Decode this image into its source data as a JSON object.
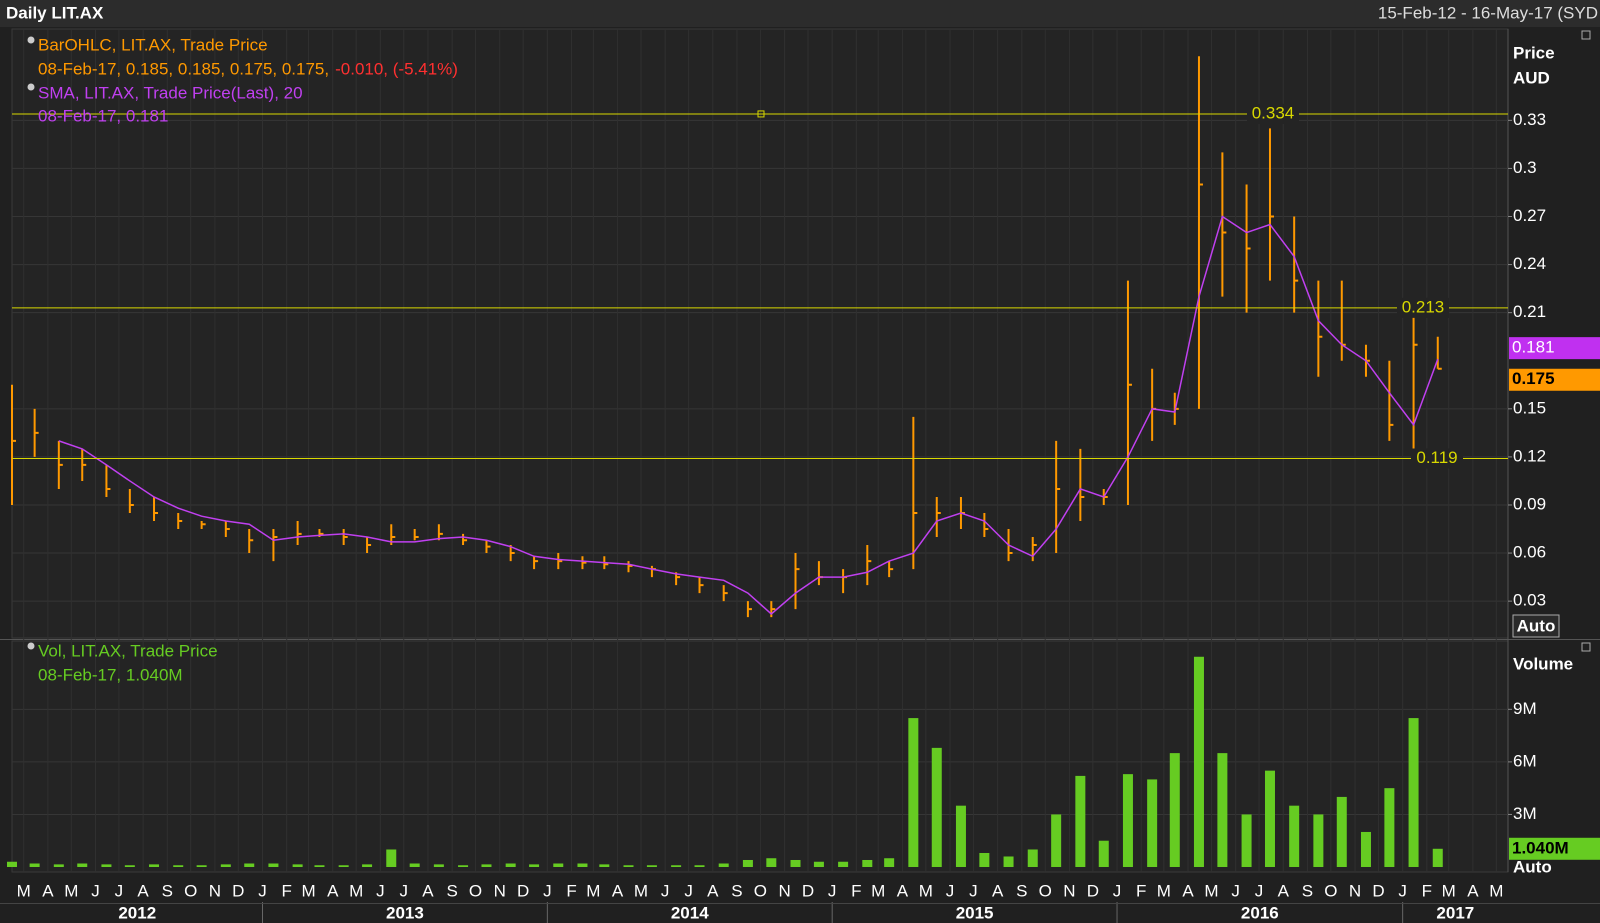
{
  "chart_data": [
    {
      "type": "ohlc",
      "title": "Daily LIT.AX",
      "date_range": "15-Feb-12 - 16-May-17 (SYD",
      "y_axis_title": [
        "Price",
        "AUD"
      ],
      "scale_button": "Auto",
      "legend_detail": [
        "08-Feb-17, 0.185, 0.185, 0.175, 0.175,",
        "-0.010, (-5.41%)",
        "08-Feb-17, 0.181"
      ],
      "xlim": [
        "2012-02-15",
        "2017-05-16"
      ],
      "x": [
        "2012-02",
        "2012-03",
        "2012-04",
        "2012-05",
        "2012-06",
        "2012-07",
        "2012-08",
        "2012-09",
        "2012-10",
        "2012-11",
        "2012-12",
        "2013-01",
        "2013-02",
        "2013-03",
        "2013-04",
        "2013-05",
        "2013-06",
        "2013-07",
        "2013-08",
        "2013-09",
        "2013-10",
        "2013-11",
        "2013-12",
        "2014-01",
        "2014-02",
        "2014-03",
        "2014-04",
        "2014-05",
        "2014-06",
        "2014-07",
        "2014-08",
        "2014-09",
        "2014-10",
        "2014-11",
        "2014-12",
        "2015-01",
        "2015-02",
        "2015-03",
        "2015-04",
        "2015-05",
        "2015-06",
        "2015-07",
        "2015-08",
        "2015-09",
        "2015-10",
        "2015-11",
        "2015-12",
        "2016-01",
        "2016-02",
        "2016-03",
        "2016-04",
        "2016-05",
        "2016-06",
        "2016-07",
        "2016-08",
        "2016-09",
        "2016-10",
        "2016-11",
        "2016-12",
        "2017-01",
        "2017-02"
      ],
      "series": [
        {
          "name": "BarOHLC, LIT.AX, Trade Price",
          "color": "#ff9900",
          "high": [
            0.165,
            0.15,
            0.13,
            0.125,
            0.115,
            0.1,
            0.095,
            0.085,
            0.08,
            0.08,
            0.075,
            0.075,
            0.08,
            0.075,
            0.075,
            0.07,
            0.078,
            0.075,
            0.078,
            0.072,
            0.068,
            0.065,
            0.058,
            0.06,
            0.058,
            0.058,
            0.055,
            0.052,
            0.048,
            0.045,
            0.04,
            0.03,
            0.03,
            0.06,
            0.055,
            0.05,
            0.065,
            0.055,
            0.145,
            0.095,
            0.095,
            0.085,
            0.075,
            0.07,
            0.13,
            0.125,
            0.1,
            0.23,
            0.175,
            0.16,
            0.37,
            0.31,
            0.29,
            0.325,
            0.27,
            0.23,
            0.23,
            0.19,
            0.18,
            0.21,
            0.195
          ],
          "low": [
            0.09,
            0.12,
            0.1,
            0.105,
            0.095,
            0.085,
            0.08,
            0.075,
            0.075,
            0.07,
            0.06,
            0.055,
            0.065,
            0.07,
            0.065,
            0.06,
            0.065,
            0.068,
            0.068,
            0.065,
            0.06,
            0.055,
            0.05,
            0.05,
            0.05,
            0.05,
            0.048,
            0.045,
            0.04,
            0.035,
            0.03,
            0.02,
            0.02,
            0.025,
            0.04,
            0.035,
            0.04,
            0.045,
            0.05,
            0.07,
            0.075,
            0.07,
            0.055,
            0.055,
            0.06,
            0.08,
            0.09,
            0.09,
            0.13,
            0.14,
            0.15,
            0.22,
            0.21,
            0.23,
            0.21,
            0.17,
            0.18,
            0.17,
            0.13,
            0.12,
            0.175
          ],
          "close": [
            0.13,
            0.135,
            0.115,
            0.115,
            0.1,
            0.09,
            0.085,
            0.08,
            0.078,
            0.075,
            0.068,
            0.07,
            0.072,
            0.072,
            0.07,
            0.065,
            0.07,
            0.07,
            0.072,
            0.068,
            0.064,
            0.06,
            0.055,
            0.055,
            0.054,
            0.053,
            0.052,
            0.05,
            0.045,
            0.04,
            0.035,
            0.025,
            0.025,
            0.05,
            0.045,
            0.045,
            0.055,
            0.05,
            0.085,
            0.085,
            0.085,
            0.075,
            0.06,
            0.065,
            0.1,
            0.095,
            0.095,
            0.165,
            0.15,
            0.15,
            0.29,
            0.26,
            0.25,
            0.27,
            0.23,
            0.195,
            0.19,
            0.18,
            0.14,
            0.19,
            0.175
          ]
        },
        {
          "name": "SMA, LIT.AX, Trade Price(Last),  20",
          "color": "#c040f0",
          "values": [
            null,
            null,
            0.13,
            0.125,
            0.115,
            0.105,
            0.095,
            0.088,
            0.083,
            0.08,
            0.078,
            0.068,
            0.07,
            0.071,
            0.072,
            0.07,
            0.067,
            0.067,
            0.069,
            0.07,
            0.068,
            0.064,
            0.058,
            0.056,
            0.055,
            0.054,
            0.053,
            0.05,
            0.047,
            0.045,
            0.043,
            0.035,
            0.022,
            0.035,
            0.045,
            0.045,
            0.048,
            0.055,
            0.06,
            0.08,
            0.085,
            0.08,
            0.065,
            0.058,
            0.075,
            0.1,
            0.095,
            0.12,
            0.15,
            0.148,
            0.22,
            0.27,
            0.26,
            0.265,
            0.245,
            0.205,
            0.19,
            0.18,
            0.16,
            0.14,
            0.181
          ]
        }
      ],
      "levels": [
        0.334,
        0.213,
        0.119
      ],
      "level_color": "#d8d800",
      "last_tags": [
        {
          "value": 0.181,
          "color": "#c030f0"
        },
        {
          "value": 0.175,
          "color": "#ff9900"
        }
      ],
      "ylim": [
        0.007,
        0.387
      ],
      "yticks": [
        0.03,
        0.06,
        0.09,
        0.12,
        0.15,
        0.21,
        0.24,
        0.27,
        0.3,
        0.33
      ],
      "grid": true
    },
    {
      "type": "bar",
      "name": "Vol, LIT.AX, Trade Price",
      "color": "#66cc22",
      "y_axis_title": "Volume",
      "scale_button": "Auto",
      "legend_detail": "08-Feb-17, 1.040M",
      "xlim": [
        "2012-02-15",
        "2017-05-16"
      ],
      "values": [
        300000,
        200000,
        150000,
        200000,
        150000,
        100000,
        150000,
        100000,
        100000,
        150000,
        200000,
        200000,
        150000,
        100000,
        100000,
        150000,
        1000000,
        200000,
        150000,
        100000,
        150000,
        200000,
        150000,
        200000,
        200000,
        150000,
        100000,
        100000,
        100000,
        100000,
        200000,
        400000,
        500000,
        400000,
        300000,
        300000,
        400000,
        500000,
        8500000,
        6800000,
        3500000,
        800000,
        600000,
        1000000,
        3000000,
        5200000,
        1500000,
        5300000,
        5000000,
        6500000,
        12000000,
        6500000,
        3000000,
        5500000,
        3500000,
        3000000,
        4000000,
        2000000,
        4500000,
        8500000,
        1040000
      ],
      "last_tag": {
        "value": 1040000,
        "label": "1.040M"
      },
      "ylim": [
        0,
        12900000
      ],
      "yticks": [
        {
          "value": 3000000,
          "label": "3M"
        },
        {
          "value": 6000000,
          "label": "6M"
        },
        {
          "value": 9000000,
          "label": "9M"
        }
      ],
      "grid": true,
      "xticks": [
        {
          "value": "2012-03",
          "label": "M"
        },
        {
          "value": "2012-04",
          "label": "A"
        },
        {
          "value": "2012-05",
          "label": "M"
        },
        {
          "value": "2012-06",
          "label": "J"
        },
        {
          "value": "2012-07",
          "label": "J"
        },
        {
          "value": "2012-08",
          "label": "A"
        },
        {
          "value": "2012-09",
          "label": "S"
        },
        {
          "value": "2012-10",
          "label": "O"
        },
        {
          "value": "2012-11",
          "label": "N"
        },
        {
          "value": "2012-12",
          "label": "D"
        },
        {
          "value": "2013-01",
          "label": "J"
        },
        {
          "value": "2013-02",
          "label": "F"
        },
        {
          "value": "2013-03",
          "label": "M"
        },
        {
          "value": "2013-04",
          "label": "A"
        },
        {
          "value": "2013-05",
          "label": "M"
        },
        {
          "value": "2013-06",
          "label": "J"
        },
        {
          "value": "2013-07",
          "label": "J"
        },
        {
          "value": "2013-08",
          "label": "A"
        },
        {
          "value": "2013-09",
          "label": "S"
        },
        {
          "value": "2013-10",
          "label": "O"
        },
        {
          "value": "2013-11",
          "label": "N"
        },
        {
          "value": "2013-12",
          "label": "D"
        },
        {
          "value": "2014-01",
          "label": "J"
        },
        {
          "value": "2014-02",
          "label": "F"
        },
        {
          "value": "2014-03",
          "label": "M"
        },
        {
          "value": "2014-04",
          "label": "A"
        },
        {
          "value": "2014-05",
          "label": "M"
        },
        {
          "value": "2014-06",
          "label": "J"
        },
        {
          "value": "2014-07",
          "label": "J"
        },
        {
          "value": "2014-08",
          "label": "A"
        },
        {
          "value": "2014-09",
          "label": "S"
        },
        {
          "value": "2014-10",
          "label": "O"
        },
        {
          "value": "2014-11",
          "label": "N"
        },
        {
          "value": "2014-12",
          "label": "D"
        },
        {
          "value": "2015-01",
          "label": "J"
        },
        {
          "value": "2015-02",
          "label": "F"
        },
        {
          "value": "2015-03",
          "label": "M"
        },
        {
          "value": "2015-04",
          "label": "A"
        },
        {
          "value": "2015-05",
          "label": "M"
        },
        {
          "value": "2015-06",
          "label": "J"
        },
        {
          "value": "2015-07",
          "label": "J"
        },
        {
          "value": "2015-08",
          "label": "A"
        },
        {
          "value": "2015-09",
          "label": "S"
        },
        {
          "value": "2015-10",
          "label": "O"
        },
        {
          "value": "2015-11",
          "label": "N"
        },
        {
          "value": "2015-12",
          "label": "D"
        },
        {
          "value": "2016-01",
          "label": "J"
        },
        {
          "value": "2016-02",
          "label": "F"
        },
        {
          "value": "2016-03",
          "label": "M"
        },
        {
          "value": "2016-04",
          "label": "A"
        },
        {
          "value": "2016-05",
          "label": "M"
        },
        {
          "value": "2016-06",
          "label": "J"
        },
        {
          "value": "2016-07",
          "label": "J"
        },
        {
          "value": "2016-08",
          "label": "A"
        },
        {
          "value": "2016-09",
          "label": "S"
        },
        {
          "value": "2016-10",
          "label": "O"
        },
        {
          "value": "2016-11",
          "label": "N"
        },
        {
          "value": "2016-12",
          "label": "D"
        },
        {
          "value": "2017-01",
          "label": "J"
        },
        {
          "value": "2017-02",
          "label": "F"
        },
        {
          "value": "2017-03",
          "label": "M"
        },
        {
          "value": "2017-04",
          "label": "A"
        },
        {
          "value": "2017-05",
          "label": "M"
        }
      ],
      "years": [
        "2012",
        "2013",
        "2014",
        "2015",
        "2016",
        "2017"
      ]
    }
  ]
}
